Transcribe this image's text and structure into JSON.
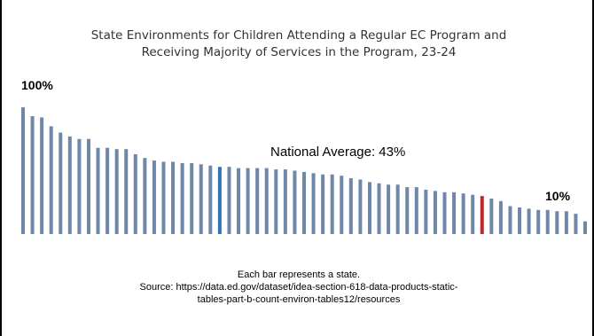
{
  "title": {
    "line1": "State Environments for Children Attending a Regular EC Program and",
    "line2": "Receiving Majority of Services in the Program, 23-24"
  },
  "labels": {
    "high": "100%",
    "low": "10%",
    "average": "National Average: 43%"
  },
  "note": {
    "line1": "Each bar represents a state.",
    "line2": "Source: https://data.ed.gov/dataset/idea-section-618-data-products-static-",
    "line3": "tables-part-b-count-environ-tables12/resources"
  },
  "colors": {
    "bar": "#6f87a8",
    "highlight_blue": "#2e75b6",
    "highlight_red": "#c0282d"
  },
  "chart_data": {
    "type": "bar",
    "values": [
      100,
      93,
      92,
      85,
      80,
      77,
      75,
      75,
      68,
      68,
      67,
      67,
      63,
      60,
      58,
      57,
      57,
      56,
      56,
      55,
      54,
      53,
      53,
      52,
      52,
      52,
      52,
      51,
      51,
      50,
      49,
      48,
      47,
      47,
      46,
      44,
      43,
      41,
      40,
      39,
      39,
      37,
      37,
      35,
      34,
      33,
      33,
      32,
      31,
      30,
      28,
      26,
      22,
      21,
      20,
      19,
      19,
      18,
      18,
      16,
      10
    ],
    "highlight": [
      {
        "index": 21,
        "color": "#2e75b6"
      },
      {
        "index": 49,
        "color": "#c0282d"
      }
    ],
    "ylim": [
      0,
      100
    ],
    "annotations": [
      "100%",
      "National Average: 43%",
      "10%"
    ]
  }
}
